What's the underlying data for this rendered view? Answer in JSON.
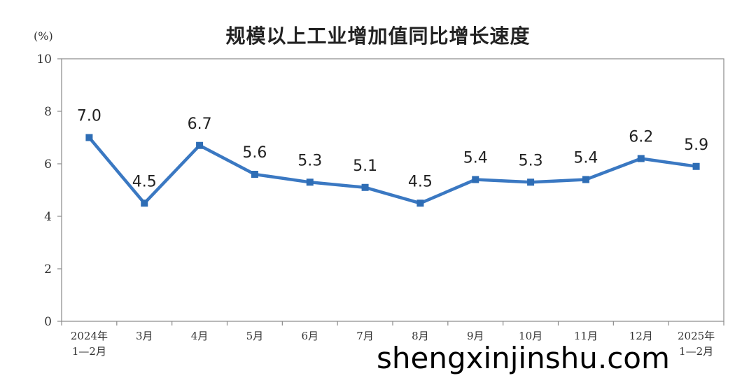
{
  "chart_data": {
    "type": "line",
    "title": "规模以上工业增加值同比增长速度",
    "unit": "(%)",
    "ylim": [
      0,
      10
    ],
    "yticks": [
      "0",
      "2",
      "4",
      "6",
      "8",
      "10"
    ],
    "grid": false,
    "categories": [
      [
        "2024年",
        "1—2月"
      ],
      [
        "3月"
      ],
      [
        "4月"
      ],
      [
        "5月"
      ],
      [
        "6月"
      ],
      [
        "7月"
      ],
      [
        "8月"
      ],
      [
        "9月"
      ],
      [
        "10月"
      ],
      [
        "11月"
      ],
      [
        "12月"
      ],
      [
        "2025年",
        "1—2月"
      ]
    ],
    "values": [
      7.0,
      4.5,
      6.7,
      5.6,
      5.3,
      5.1,
      4.5,
      5.4,
      5.3,
      5.4,
      6.2,
      5.9
    ],
    "data_labels": [
      "7.0",
      "4.5",
      "6.7",
      "5.6",
      "5.3",
      "5.1",
      "4.5",
      "5.4",
      "5.3",
      "5.4",
      "6.2",
      "5.9"
    ],
    "line_color": "#3a78c2",
    "marker_color": "#2e6db5"
  },
  "watermark": "shengxinjinshu.com"
}
